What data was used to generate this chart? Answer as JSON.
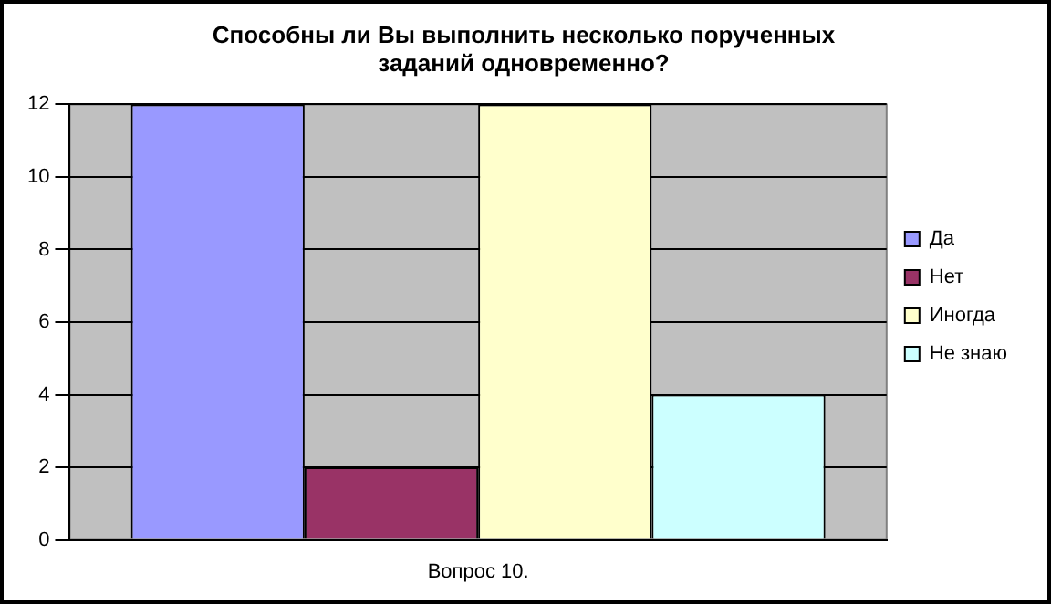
{
  "chart_data": {
    "type": "bar",
    "title": "Способны ли Вы выполнить несколько порученных\nзаданий одновременно?",
    "categories": [
      "Вопрос 10."
    ],
    "series": [
      {
        "name": "Да",
        "color": "#9999ff",
        "values": [
          12
        ]
      },
      {
        "name": "Нет",
        "color": "#993366",
        "values": [
          2
        ]
      },
      {
        "name": "Иногда",
        "color": "#ffffcc",
        "values": [
          12
        ]
      },
      {
        "name": "Не знаю",
        "color": "#ccffff",
        "values": [
          4
        ]
      }
    ],
    "ylim": [
      0,
      12
    ],
    "yticks": [
      0,
      2,
      4,
      6,
      8,
      10,
      12
    ],
    "grid": "y",
    "legend": "right"
  }
}
